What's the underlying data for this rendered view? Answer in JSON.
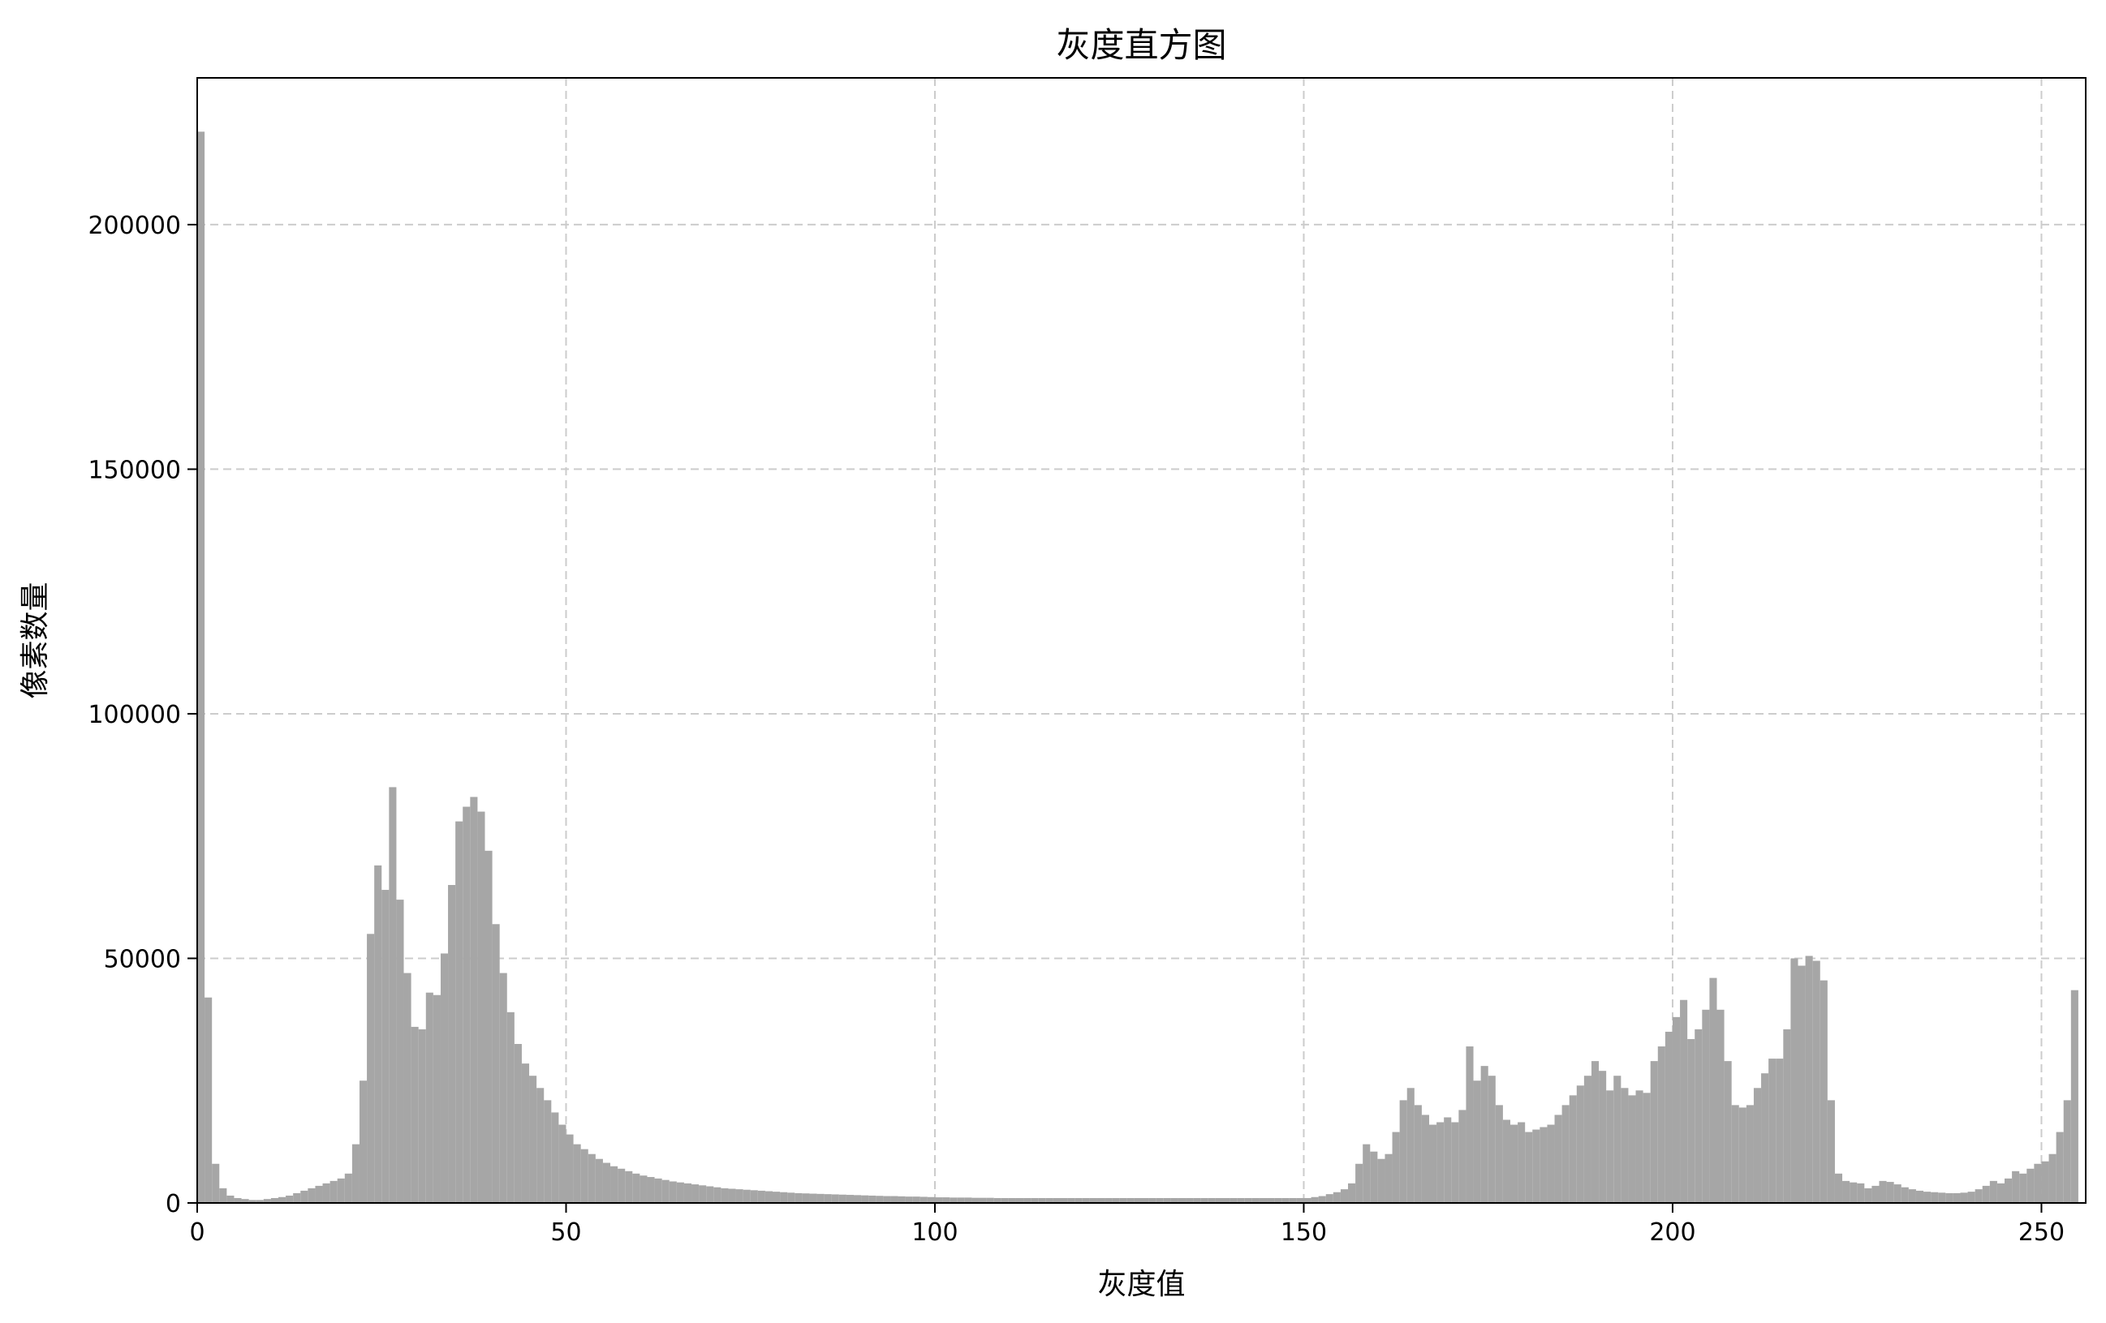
{
  "chart_data": {
    "type": "bar",
    "title": "灰度直方图",
    "xlabel": "灰度值",
    "ylabel": "像素数量",
    "xlim": [
      0,
      256
    ],
    "ylim": [
      0,
      230000
    ],
    "xticks": [
      0,
      50,
      100,
      150,
      200,
      250
    ],
    "yticks": [
      0,
      50000,
      100000,
      150000,
      200000
    ],
    "xtick_labels": [
      "0",
      "50",
      "100",
      "150",
      "200",
      "250"
    ],
    "ytick_labels": [
      "0",
      "50000",
      "100000",
      "150000",
      "200000"
    ],
    "grid": true,
    "grid_style": "dashed",
    "legend": "none",
    "colors": {
      "bar": "#a6a6a6",
      "grid": "#cccccc",
      "axis": "#000000"
    },
    "bins": "0..255 (width 1)",
    "values": [
      219000,
      42000,
      8000,
      3000,
      1500,
      1000,
      800,
      600,
      600,
      800,
      1000,
      1200,
      1500,
      2000,
      2500,
      3000,
      3500,
      4000,
      4500,
      5000,
      6000,
      12000,
      25000,
      55000,
      69000,
      64000,
      85000,
      62000,
      47000,
      36000,
      35500,
      43000,
      42500,
      51000,
      65000,
      78000,
      81000,
      83000,
      80000,
      72000,
      57000,
      47000,
      39000,
      32500,
      28500,
      26000,
      23500,
      21000,
      18500,
      16000,
      14000,
      12000,
      11000,
      10000,
      9000,
      8200,
      7500,
      7000,
      6500,
      6000,
      5600,
      5300,
      5000,
      4700,
      4400,
      4200,
      4000,
      3800,
      3600,
      3400,
      3200,
      3000,
      2900,
      2800,
      2700,
      2600,
      2500,
      2400,
      2300,
      2200,
      2100,
      2000,
      1950,
      1900,
      1850,
      1800,
      1750,
      1700,
      1650,
      1600,
      1550,
      1500,
      1450,
      1400,
      1400,
      1350,
      1300,
      1300,
      1250,
      1200,
      1150,
      1150,
      1100,
      1100,
      1100,
      1050,
      1050,
      1050,
      1000,
      1000,
      1000,
      1000,
      1000,
      1000,
      1000,
      1000,
      1000,
      1000,
      1000,
      1000,
      1000,
      1000,
      1000,
      1000,
      1000,
      1000,
      1000,
      1000,
      1000,
      1000,
      1000,
      1000,
      1000,
      1000,
      1000,
      1000,
      1000,
      1000,
      1000,
      1000,
      1000,
      1000,
      1000,
      1000,
      1000,
      1000,
      1000,
      1000,
      1000,
      1000,
      1000,
      1200,
      1400,
      1800,
      2200,
      2800,
      4000,
      8000,
      12000,
      10500,
      9000,
      10000,
      14500,
      21000,
      23500,
      20000,
      18000,
      16000,
      16500,
      17500,
      16500,
      19000,
      32000,
      25000,
      28000,
      26000,
      20000,
      17000,
      16000,
      16500,
      14500,
      15000,
      15500,
      16000,
      18000,
      20000,
      22000,
      24000,
      26000,
      29000,
      27000,
      23000,
      26000,
      23500,
      22000,
      23000,
      22500,
      29000,
      32000,
      35000,
      38000,
      41500,
      33500,
      35500,
      39500,
      46000,
      39500,
      29000,
      20000,
      19500,
      20000,
      23500,
      26500,
      29500,
      29500,
      35500,
      50000,
      48500,
      50500,
      49500,
      45500,
      21000,
      6000,
      4500,
      4200,
      4000,
      3000,
      3500,
      4500,
      4300,
      3800,
      3200,
      2800,
      2500,
      2300,
      2200,
      2100,
      2000,
      2000,
      2100,
      2300,
      2800,
      3500,
      4500,
      4000,
      5000,
      6500,
      6000,
      7000,
      8000,
      8500,
      10000,
      14500,
      21000,
      43500
    ]
  }
}
